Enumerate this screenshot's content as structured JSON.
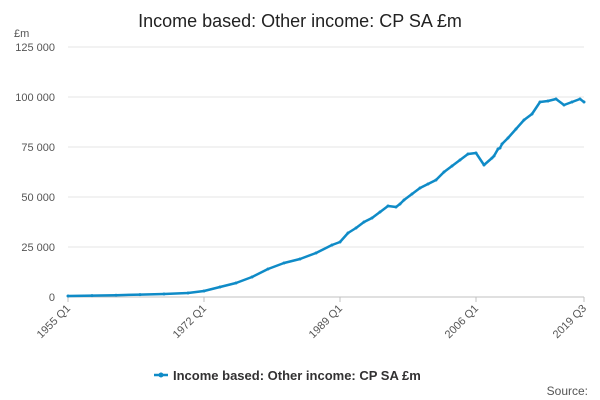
{
  "chart_data": {
    "type": "line",
    "title": "Income based: Other income: CP SA £m",
    "ylabel": "£m",
    "xlabel": "",
    "ylim": [
      0,
      125000
    ],
    "yticks": [
      0,
      25000,
      50000,
      75000,
      100000,
      125000
    ],
    "ytick_labels": [
      "0",
      "25 000",
      "50 000",
      "75 000",
      "100 000",
      "125 000"
    ],
    "xtick_labels": [
      "1955 Q1",
      "1972 Q1",
      "1989 Q1",
      "2006 Q1",
      "2019 Q3"
    ],
    "xtick_years": [
      1955.0,
      1972.0,
      1989.0,
      2006.0,
      2019.5
    ],
    "grid": true,
    "legend_position": "bottom",
    "color": "#0f8bc7",
    "source": "Source:",
    "series": [
      {
        "name": "Income based: Other income: CP SA £m",
        "x": [
          "1955 Q1",
          "1958 Q1",
          "1961 Q1",
          "1964 Q1",
          "1967 Q1",
          "1970 Q1",
          "1972 Q1",
          "1974 Q1",
          "1976 Q1",
          "1978 Q1",
          "1980 Q1",
          "1982 Q1",
          "1984 Q1",
          "1986 Q1",
          "1988 Q1",
          "1989 Q1",
          "1990 Q1",
          "1991 Q1",
          "1992 Q1",
          "1993 Q1",
          "1994 Q1",
          "1995 Q1",
          "1996 Q1",
          "1996 Q3",
          "1997 Q1",
          "1998 Q1",
          "1999 Q1",
          "2000 Q1",
          "2001 Q1",
          "2002 Q1",
          "2003 Q1",
          "2004 Q1",
          "2005 Q1",
          "2006 Q1",
          "2007 Q1",
          "2008 Q1",
          "2008 Q2",
          "2008 Q4",
          "2009 Q1",
          "2009 Q2",
          "2010 Q1",
          "2011 Q1",
          "2012 Q1",
          "2013 Q1",
          "2014 Q1",
          "2015 Q1",
          "2016 Q1",
          "2017 Q1",
          "2018 Q1",
          "2019 Q1",
          "2019 Q3"
        ],
        "year": [
          1955.0,
          1958.0,
          1961.0,
          1964.0,
          1967.0,
          1970.0,
          1972.0,
          1974.0,
          1976.0,
          1978.0,
          1980.0,
          1982.0,
          1984.0,
          1986.0,
          1988.0,
          1989.0,
          1990.0,
          1991.0,
          1992.0,
          1993.0,
          1994.0,
          1995.0,
          1996.0,
          1996.5,
          1997.0,
          1998.0,
          1999.0,
          2000.0,
          2001.0,
          2002.0,
          2003.0,
          2004.0,
          2005.0,
          2006.0,
          2007.0,
          2008.0,
          2008.25,
          2008.75,
          2009.0,
          2009.25,
          2010.0,
          2011.0,
          2012.0,
          2013.0,
          2014.0,
          2015.0,
          2016.0,
          2017.0,
          2018.0,
          2019.0,
          2019.5
        ],
        "values": [
          500,
          700,
          900,
          1200,
          1500,
          2000,
          3000,
          5000,
          7000,
          10000,
          14000,
          17000,
          19000,
          22000,
          26000,
          27500,
          32000,
          34500,
          37500,
          39500,
          42500,
          45500,
          45000,
          46500,
          48500,
          51500,
          54500,
          56500,
          58500,
          62500,
          65500,
          68500,
          71500,
          72000,
          66000,
          69500,
          70500,
          74000,
          74500,
          76500,
          79500,
          84000,
          88500,
          91500,
          97500,
          98000,
          99000,
          96000,
          97500,
          99000,
          97500
        ]
      }
    ]
  }
}
